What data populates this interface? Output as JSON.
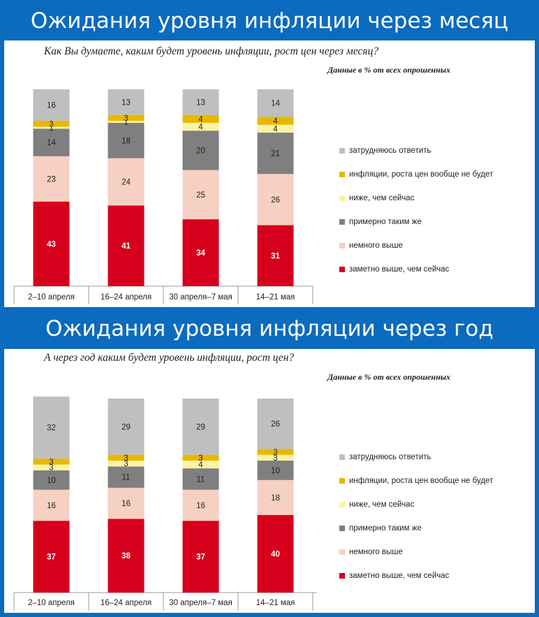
{
  "colors": {
    "banner": "#0b6bbf",
    "hard_to_say": "#bfbfbf",
    "no_inflation": "#e8b800",
    "lower": "#fdf2a6",
    "same": "#7f7f7f",
    "slightly_higher": "#f6d0c3",
    "noticeably_higher": "#d6001c"
  },
  "chart_data": [
    {
      "type": "bar",
      "stacked": true,
      "title": "Ожидания уровня инфляции через месяц",
      "subtitle": "Как Вы думаете, каким будет уровень инфляции, рост цен через месяц?",
      "note": "Данные в % от всех опрошенных",
      "categories": [
        "2–10 апреля",
        "16–24 апреля",
        "30 апреля–7 мая",
        "14–21 мая"
      ],
      "ylim": [
        0,
        100
      ],
      "legend_position": "right",
      "series": [
        {
          "name": "заметно выше, чем сейчас",
          "color": "#d6001c",
          "values": [
            43,
            41,
            34,
            31
          ]
        },
        {
          "name": "немного выше",
          "color": "#f6d0c3",
          "values": [
            23,
            24,
            25,
            26
          ]
        },
        {
          "name": "примерно таким же",
          "color": "#7f7f7f",
          "values": [
            14,
            18,
            20,
            21
          ]
        },
        {
          "name": "ниже, чем сейчас",
          "color": "#fdf2a6",
          "values": [
            1,
            1,
            4,
            4
          ]
        },
        {
          "name": "инфляции, роста цен вообще не будет",
          "color": "#e8b800",
          "values": [
            3,
            3,
            4,
            4
          ]
        },
        {
          "name": "затрудняюсь ответить",
          "color": "#bfbfbf",
          "values": [
            16,
            13,
            13,
            14
          ]
        }
      ]
    },
    {
      "type": "bar",
      "stacked": true,
      "title": "Ожидания уровня инфляции через год",
      "subtitle": "А через год каким будет уровень инфляции, рост цен?",
      "note": "Данные в % от всех опрошенных",
      "categories": [
        "2–10 апреля",
        "16–24 апреля",
        "30 апреля–7 мая",
        "14–21 мая"
      ],
      "ylim": [
        0,
        100
      ],
      "legend_position": "right",
      "series": [
        {
          "name": "заметно выше, чем сейчас",
          "color": "#d6001c",
          "values": [
            37,
            38,
            37,
            40
          ]
        },
        {
          "name": "немного выше",
          "color": "#f6d0c3",
          "values": [
            16,
            16,
            16,
            18
          ]
        },
        {
          "name": "примерно таким же",
          "color": "#7f7f7f",
          "values": [
            10,
            11,
            11,
            10
          ]
        },
        {
          "name": "ниже, чем сейчас",
          "color": "#fdf2a6",
          "values": [
            3,
            3,
            4,
            3
          ]
        },
        {
          "name": "инфляции, роста цен вообще не будет",
          "color": "#e8b800",
          "values": [
            3,
            3,
            3,
            3
          ]
        },
        {
          "name": "затрудняюсь ответить",
          "color": "#bfbfbf",
          "values": [
            32,
            29,
            29,
            26
          ]
        }
      ]
    }
  ]
}
